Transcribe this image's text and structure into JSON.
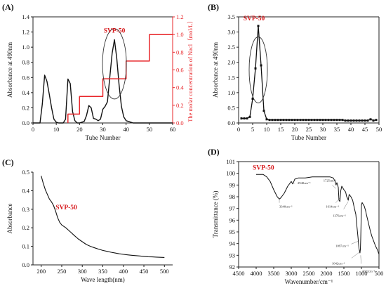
{
  "chart_data": [
    {
      "panel": "(A)",
      "type": "line",
      "title": "",
      "xlabel": "Tube Number",
      "ylabel": "Absorbance at 490nm",
      "y2label": "The molar concentration of Nacl（mol/L）",
      "annotation": "SVP-50",
      "xlim": [
        0,
        60
      ],
      "ylim": [
        0,
        1.4
      ],
      "y2lim": [
        0,
        1.2
      ],
      "x_ticks": [
        0,
        10,
        20,
        30,
        40,
        50,
        60
      ],
      "y_ticks": [
        0.0,
        0.2,
        0.4,
        0.6,
        0.8,
        1.0,
        1.2,
        1.4
      ],
      "y2_ticks": [
        0.0,
        0.2,
        0.4,
        0.6,
        0.8,
        1.0,
        1.2
      ],
      "colors": {
        "absorbance": "#000000",
        "nacl": "#e8262a"
      },
      "series": [
        {
          "axis": "left",
          "x": [
            0,
            1,
            2,
            3,
            4,
            5,
            6,
            7,
            8,
            9,
            10,
            11,
            12,
            13,
            14,
            15,
            16,
            17,
            18,
            19,
            20,
            21,
            22,
            23,
            24,
            25,
            26,
            27,
            28,
            29,
            30,
            31,
            32,
            33,
            34,
            35,
            36,
            37,
            38,
            39,
            40,
            41,
            42,
            43,
            44,
            45,
            46,
            47,
            48,
            49,
            50,
            52,
            55,
            58,
            60
          ],
          "values": [
            0,
            0,
            0,
            0,
            0.25,
            0.63,
            0.55,
            0.38,
            0.2,
            0.05,
            0.01,
            0,
            0,
            0,
            0.05,
            0.58,
            0.52,
            0.15,
            0.03,
            0,
            0,
            0.01,
            0.02,
            0.1,
            0.23,
            0.2,
            0.06,
            0.05,
            0.03,
            0.05,
            0.18,
            0.22,
            0.28,
            0.6,
            0.92,
            1.1,
            0.85,
            0.5,
            0.22,
            0.08,
            0.03,
            0.02,
            0.01,
            0,
            0,
            0,
            0,
            0,
            0,
            0,
            0,
            0,
            0,
            0,
            0
          ]
        },
        {
          "axis": "right",
          "x": [
            15,
            15,
            20,
            20,
            30,
            30,
            40,
            40,
            50,
            50,
            60
          ],
          "values": [
            0,
            0.1,
            0.1,
            0.3,
            0.3,
            0.5,
            0.5,
            0.7,
            0.7,
            1.0,
            1.0
          ]
        }
      ]
    },
    {
      "panel": "(B)",
      "type": "line",
      "title": "",
      "xlabel": "Tube Number",
      "ylabel": "Absorbance at 490nm",
      "annotation": "SVP-50",
      "xlim": [
        0,
        50
      ],
      "ylim": [
        0,
        3.5
      ],
      "x_ticks": [
        0,
        5,
        10,
        15,
        20,
        25,
        30,
        35,
        40,
        45,
        50
      ],
      "y_ticks": [
        0.0,
        0.5,
        1.0,
        1.5,
        2.0,
        2.5,
        3.0,
        3.5
      ],
      "series": [
        {
          "x": [
            1,
            2,
            3,
            4,
            5,
            6,
            7,
            8,
            9,
            10,
            11,
            12,
            13,
            14,
            15,
            16,
            17,
            18,
            19,
            20,
            21,
            22,
            23,
            24,
            25,
            26,
            27,
            28,
            29,
            30,
            31,
            32,
            33,
            34,
            35,
            36,
            37,
            38,
            39,
            40,
            41,
            42,
            43,
            44,
            45,
            46,
            47,
            48,
            49
          ],
          "values": [
            0.15,
            0.15,
            0.15,
            0.2,
            0.8,
            1.8,
            3.2,
            1.9,
            0.4,
            0.12,
            0.1,
            0.1,
            0.1,
            0.1,
            0.1,
            0.1,
            0.1,
            0.1,
            0.1,
            0.1,
            0.1,
            0.1,
            0.1,
            0.1,
            0.1,
            0.1,
            0.1,
            0.1,
            0.1,
            0.1,
            0.1,
            0.1,
            0.1,
            0.1,
            0.1,
            0.1,
            0.1,
            0.08,
            0.08,
            0.08,
            0.08,
            0.08,
            0.08,
            0.08,
            0.08,
            0.08,
            0.12,
            0.08,
            0.1
          ]
        }
      ]
    },
    {
      "panel": "(C)",
      "type": "line",
      "title": "",
      "xlabel": "Wave length(nm)",
      "ylabel": "Absorbance",
      "annotation": "SVP-50",
      "xlim": [
        180,
        520
      ],
      "ylim": [
        0,
        0.5
      ],
      "x_ticks": [
        200,
        250,
        300,
        350,
        400,
        450,
        500
      ],
      "y_ticks": [
        0.0,
        0.1,
        0.2,
        0.3,
        0.4,
        0.5
      ],
      "series": [
        {
          "x": [
            200,
            205,
            210,
            215,
            220,
            225,
            230,
            235,
            240,
            245,
            250,
            260,
            270,
            280,
            290,
            300,
            310,
            320,
            330,
            340,
            350,
            360,
            370,
            380,
            390,
            400,
            410,
            420,
            430,
            440,
            450,
            460,
            470,
            480,
            490,
            500
          ],
          "values": [
            0.48,
            0.44,
            0.405,
            0.38,
            0.355,
            0.34,
            0.32,
            0.29,
            0.255,
            0.23,
            0.215,
            0.2,
            0.18,
            0.16,
            0.14,
            0.125,
            0.11,
            0.1,
            0.092,
            0.085,
            0.078,
            0.073,
            0.068,
            0.064,
            0.06,
            0.057,
            0.054,
            0.052,
            0.05,
            0.048,
            0.046,
            0.044,
            0.043,
            0.042,
            0.041,
            0.04
          ]
        }
      ]
    },
    {
      "panel": "(D)",
      "type": "line",
      "title": "",
      "xlabel": "Wavenumber/cm⁻¹",
      "ylabel": "Transmittance (%)",
      "annotation": "SVP-50",
      "xlim": [
        4500,
        500
      ],
      "ylim": [
        92,
        101
      ],
      "x_ticks": [
        4500,
        4000,
        3500,
        3000,
        2500,
        2000,
        1500,
        1000,
        500
      ],
      "y_ticks": [
        92,
        93,
        94,
        95,
        96,
        97,
        98,
        99,
        100,
        101
      ],
      "peak_labels": [
        {
          "label": "3340cm⁻¹",
          "x": 3340,
          "y": 97.9
        },
        {
          "label": "2940cm⁻¹",
          "x": 2940,
          "y": 99.2
        },
        {
          "label": "1725cm⁻¹",
          "x": 1725,
          "y": 98.7
        },
        {
          "label": "1614cm⁻¹",
          "x": 1614,
          "y": 97.9
        },
        {
          "label": "1376cm⁻¹",
          "x": 1376,
          "y": 97.6
        },
        {
          "label": "1097cm⁻¹",
          "x": 1097,
          "y": 94.2
        },
        {
          "label": "1042cm⁻¹",
          "x": 1042,
          "y": 93.3
        },
        {
          "label": "1022cm⁻¹",
          "x": 1022,
          "y": 93.0
        }
      ],
      "series": [
        {
          "x": [
            4000,
            3800,
            3700,
            3600,
            3500,
            3400,
            3340,
            3300,
            3200,
            3100,
            3000,
            2960,
            2940,
            2900,
            2800,
            2600,
            2400,
            2200,
            2000,
            1900,
            1800,
            1750,
            1725,
            1700,
            1660,
            1640,
            1614,
            1590,
            1560,
            1500,
            1450,
            1420,
            1400,
            1376,
            1350,
            1300,
            1250,
            1200,
            1160,
            1130,
            1100,
            1070,
            1050,
            1042,
            1030,
            1020,
            1000,
            980,
            960,
            940,
            920,
            900,
            880,
            860,
            820,
            780,
            740,
            700,
            650,
            600,
            550,
            500
          ],
          "values": [
            99.9,
            99.9,
            99.7,
            99.3,
            98.6,
            98.0,
            97.8,
            97.9,
            98.3,
            98.9,
            99.3,
            99.1,
            99.2,
            99.5,
            99.6,
            99.6,
            99.7,
            99.7,
            99.7,
            99.7,
            99.6,
            99.3,
            99.0,
            99.2,
            98.8,
            97.7,
            97.6,
            98.5,
            98.9,
            98.6,
            98.4,
            98.0,
            97.9,
            97.7,
            98.2,
            98.0,
            97.7,
            97.0,
            96.5,
            95.5,
            94.6,
            93.6,
            93.3,
            93.2,
            93.5,
            94.4,
            97.3,
            97.5,
            97.4,
            97.3,
            97.2,
            97.0,
            96.8,
            96.5,
            96.0,
            95.5,
            95.0,
            94.6,
            94.2,
            93.8,
            93.5,
            93.1
          ]
        }
      ]
    }
  ]
}
